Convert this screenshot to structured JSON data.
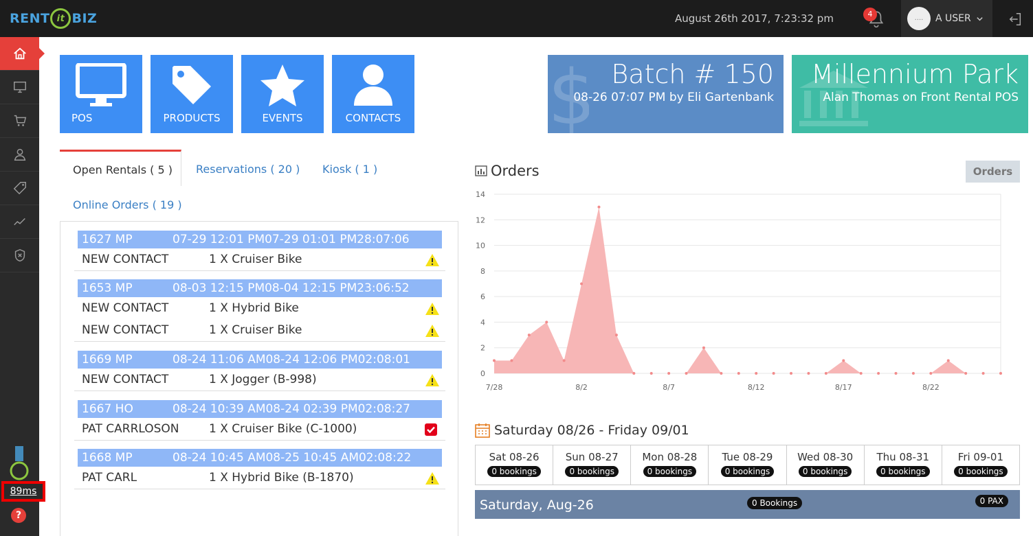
{
  "header": {
    "logo_left": "RENT",
    "logo_mid": "it",
    "logo_right": "BIZ",
    "datetime": "August 26th 2017, 7:23:32 pm",
    "notification_count": "4",
    "avatar_text": "....",
    "user_name": "A USER"
  },
  "sidebar": {
    "items": [
      "home-icon",
      "monitor-icon",
      "cart-icon",
      "contacts-icon",
      "tag-icon",
      "chart-line-icon",
      "shield-icon"
    ],
    "latency": "89ms",
    "help": "?"
  },
  "tiles": [
    {
      "label": "POS",
      "icon": "monitor-icon"
    },
    {
      "label": "PRODUCTS",
      "icon": "tag-icon"
    },
    {
      "label": "EVENTS",
      "icon": "star-icon"
    },
    {
      "label": "CONTACTS",
      "icon": "user-icon"
    }
  ],
  "batch": {
    "title": "Batch # 150",
    "subtitle": "08-26 07:07 PM by Eli Gartenbank",
    "color": "#5b8cc6"
  },
  "location": {
    "title": "Millennium Park",
    "subtitle": "Alan Thomas on Front Rental POS",
    "color": "#3fbca5"
  },
  "tabs": {
    "open_rentals": "Open Rentals ( 5 )",
    "reservations": "Reservations ( 20 )",
    "kiosk": "Kiosk ( 1 )",
    "online_orders": "Online Orders ( 19 )"
  },
  "rentals": [
    {
      "id": "1627 MP",
      "times": "07-29 12:01 PM07-29 01:01 PM28:07:06",
      "lines": [
        {
          "contact": "NEW CONTACT",
          "item": "1 X Cruiser Bike",
          "status": "warning"
        }
      ]
    },
    {
      "id": "1653 MP",
      "times": "08-03 12:15 PM08-04 12:15 PM23:06:52",
      "lines": [
        {
          "contact": "NEW CONTACT",
          "item": "1 X Hybrid Bike",
          "status": "warning"
        },
        {
          "contact": "NEW CONTACT",
          "item": "1 X Cruiser Bike",
          "status": "warning"
        }
      ]
    },
    {
      "id": "1669 MP",
      "times": "08-24 11:06 AM08-24 12:06 PM02:08:01",
      "lines": [
        {
          "contact": "NEW CONTACT",
          "item": "1 X Jogger (B-998)",
          "status": "warning"
        }
      ]
    },
    {
      "id": "1667 HO",
      "times": "08-24 10:39 AM08-24 02:39 PM02:08:27",
      "lines": [
        {
          "contact": "PAT CARRLOSON",
          "item": "1 X Cruiser Bike (C-1000)",
          "status": "checked"
        }
      ]
    },
    {
      "id": "1668 MP",
      "times": "08-24 10:45 AM08-25 10:45 AM02:08:22",
      "lines": [
        {
          "contact": "PAT CARL",
          "item": "1 X Hybrid Bike (B-1870)",
          "status": "warning"
        }
      ]
    }
  ],
  "orders": {
    "title": "Orders",
    "button": "Orders"
  },
  "chart_data": {
    "type": "area",
    "x": [
      "7/28",
      "7/29",
      "7/30",
      "7/31",
      "8/1",
      "8/2",
      "8/3",
      "8/4",
      "8/5",
      "8/6",
      "8/7",
      "8/8",
      "8/9",
      "8/10",
      "8/11",
      "8/12",
      "8/13",
      "8/14",
      "8/15",
      "8/16",
      "8/17",
      "8/18",
      "8/19",
      "8/20",
      "8/21",
      "8/22",
      "8/23",
      "8/24",
      "8/25",
      "8/26"
    ],
    "values": [
      1,
      1,
      3,
      4,
      1,
      7,
      13,
      3,
      0,
      0,
      0,
      0,
      2,
      0,
      0,
      0,
      0,
      0,
      0,
      0,
      1,
      0,
      0,
      0,
      0,
      0,
      1,
      0,
      0,
      0
    ],
    "xticks": [
      "7/28",
      "8/2",
      "8/7",
      "8/12",
      "8/17",
      "8/22"
    ],
    "yticks": [
      0,
      2,
      4,
      6,
      8,
      10,
      12,
      14
    ],
    "ylim": [
      0,
      14
    ],
    "grid": true,
    "color": "#f7b6b6"
  },
  "week": {
    "title": "Saturday 08/26 - Friday 09/01",
    "days": [
      {
        "label": "Sat 08-26",
        "bookings": "0 bookings"
      },
      {
        "label": "Sun 08-27",
        "bookings": "0 bookings"
      },
      {
        "label": "Mon 08-28",
        "bookings": "0 bookings"
      },
      {
        "label": "Tue 08-29",
        "bookings": "0 bookings"
      },
      {
        "label": "Wed 08-30",
        "bookings": "0 bookings"
      },
      {
        "label": "Thu 08-31",
        "bookings": "0 bookings"
      },
      {
        "label": "Fri 09-01",
        "bookings": "0 bookings"
      }
    ],
    "selected_day": "Saturday, Aug-26",
    "selected_bookings": "0 Bookings",
    "selected_pax": "0 PAX"
  }
}
